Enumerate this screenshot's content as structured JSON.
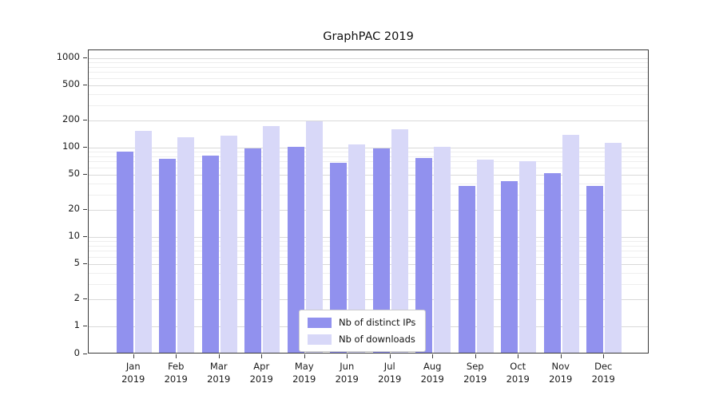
{
  "chart_data": {
    "type": "bar",
    "title": "GraphPAC 2019",
    "categories": [
      "Jan",
      "Feb",
      "Mar",
      "Apr",
      "May",
      "Jun",
      "Jul",
      "Aug",
      "Sep",
      "Oct",
      "Nov",
      "Dec"
    ],
    "year_label": "2019",
    "series": [
      {
        "name": "Nb of distinct IPs",
        "color": "#9191ee",
        "values": [
          90,
          75,
          82,
          97,
          102,
          68,
          98,
          76,
          37,
          42,
          52,
          37
        ]
      },
      {
        "name": "Nb of downloads",
        "color": "#d8d8f8",
        "values": [
          155,
          130,
          135,
          175,
          197,
          108,
          162,
          103,
          73,
          70,
          138,
          112
        ]
      }
    ],
    "yscale": "symlog",
    "y_ticks": [
      0,
      1,
      2,
      5,
      10,
      20,
      50,
      100,
      200,
      500,
      1000
    ],
    "ylim": [
      0,
      1000
    ],
    "grid": true,
    "legend_position": "lower center"
  }
}
